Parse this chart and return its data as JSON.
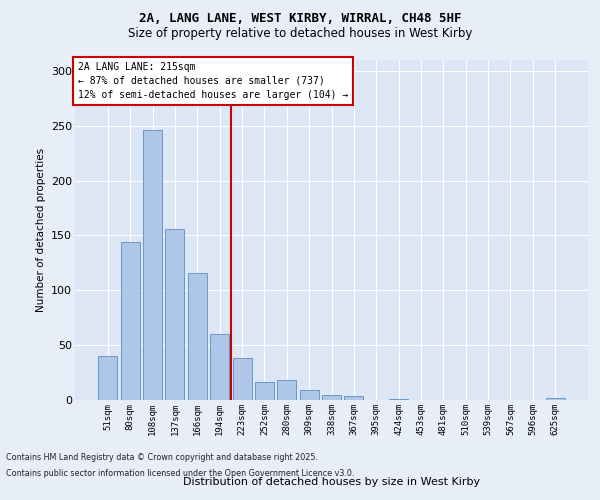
{
  "title_line1": "2A, LANG LANE, WEST KIRBY, WIRRAL, CH48 5HF",
  "title_line2": "Size of property relative to detached houses in West Kirby",
  "xlabel": "Distribution of detached houses by size in West Kirby",
  "ylabel": "Number of detached properties",
  "categories": [
    "51sqm",
    "80sqm",
    "108sqm",
    "137sqm",
    "166sqm",
    "194sqm",
    "223sqm",
    "252sqm",
    "280sqm",
    "309sqm",
    "338sqm",
    "367sqm",
    "395sqm",
    "424sqm",
    "453sqm",
    "481sqm",
    "510sqm",
    "539sqm",
    "567sqm",
    "596sqm",
    "625sqm"
  ],
  "values": [
    40,
    144,
    246,
    156,
    116,
    60,
    38,
    16,
    18,
    9,
    5,
    4,
    0,
    1,
    0,
    0,
    0,
    0,
    0,
    0,
    2
  ],
  "bar_color": "#aec6e8",
  "bar_edge_color": "#5a8fc2",
  "bg_color": "#dde6f5",
  "grid_color": "#ffffff",
  "fig_bg_color": "#e8eef8",
  "vline_x": 5.5,
  "vline_color": "#cc0000",
  "annotation_text": "2A LANG LANE: 215sqm\n← 87% of detached houses are smaller (737)\n12% of semi-detached houses are larger (104) →",
  "annotation_box_color": "#ffffff",
  "annotation_box_edge": "#cc0000",
  "footer_line1": "Contains HM Land Registry data © Crown copyright and database right 2025.",
  "footer_line2": "Contains public sector information licensed under the Open Government Licence v3.0.",
  "ylim": [
    0,
    310
  ],
  "yticks": [
    0,
    50,
    100,
    150,
    200,
    250,
    300
  ]
}
